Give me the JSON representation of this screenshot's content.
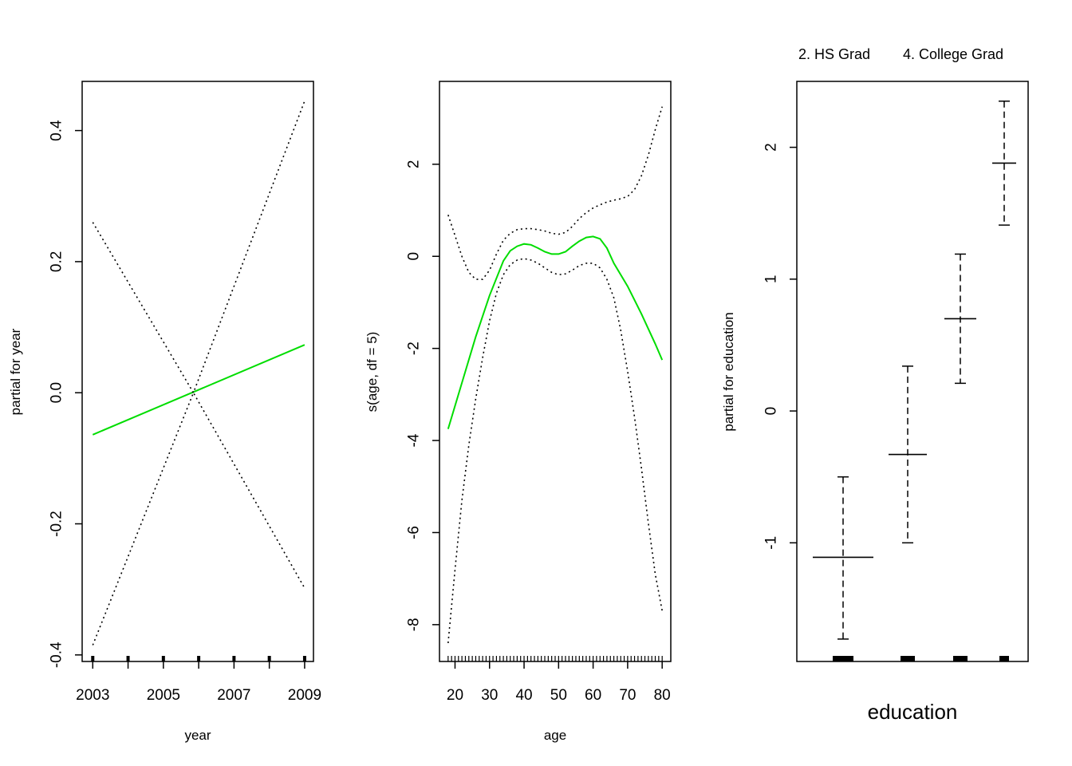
{
  "chart_data": [
    {
      "type": "line",
      "xlabel": "year",
      "ylabel": "partial for year",
      "xlim": [
        2002.7,
        2009.25
      ],
      "ylim": [
        -0.41,
        0.475
      ],
      "x_ticks": [
        2003,
        2005,
        2007,
        2009
      ],
      "x_tick_labels": [
        "2003",
        "2005",
        "2007",
        "2009"
      ],
      "x_minor_ticks": [
        2004,
        2006,
        2008
      ],
      "y_ticks": [
        -0.4,
        -0.2,
        0.0,
        0.2,
        0.4
      ],
      "y_tick_labels": [
        "-0.4",
        "-0.2",
        "0.0",
        "0.2",
        "0.4"
      ],
      "rug": [
        2003,
        2004,
        2005,
        2006,
        2007,
        2008,
        2009
      ],
      "series": [
        {
          "role": "fit",
          "color": "#00dd00",
          "x": [
            2003,
            2009
          ],
          "y": [
            -0.064,
            0.073
          ]
        },
        {
          "role": "upper-band",
          "color": "#000000",
          "x": [
            2003,
            2005.85,
            2009
          ],
          "y": [
            0.26,
            0.0,
            0.445
          ]
        },
        {
          "role": "lower-band",
          "color": "#000000",
          "x": [
            2003,
            2005.85,
            2009
          ],
          "y": [
            -0.385,
            0.0,
            -0.298
          ]
        }
      ]
    },
    {
      "type": "line",
      "xlabel": "age",
      "ylabel": "s(age, df = 5)",
      "xlim": [
        15.5,
        82.5
      ],
      "ylim": [
        -8.8,
        3.8
      ],
      "x_ticks": [
        20,
        30,
        40,
        50,
        60,
        70,
        80
      ],
      "x_tick_labels": [
        "20",
        "30",
        "40",
        "50",
        "60",
        "70",
        "80"
      ],
      "y_ticks": [
        -8,
        -6,
        -4,
        -2,
        0,
        2
      ],
      "y_tick_labels": [
        "-8",
        "-6",
        "-4",
        "-2",
        "0",
        "2"
      ],
      "rug_range": [
        18,
        80
      ],
      "series": [
        {
          "role": "fit",
          "color": "#00dd00",
          "x": [
            18,
            22,
            26,
            30,
            34,
            36,
            38,
            40,
            42,
            44,
            46,
            48,
            50,
            52,
            54,
            56,
            58,
            60,
            62,
            64,
            66,
            70,
            74,
            78,
            80
          ],
          "y": [
            -3.75,
            -2.75,
            -1.75,
            -0.85,
            -0.1,
            0.12,
            0.22,
            0.27,
            0.25,
            0.18,
            0.1,
            0.05,
            0.05,
            0.1,
            0.22,
            0.33,
            0.41,
            0.43,
            0.38,
            0.18,
            -0.15,
            -0.65,
            -1.25,
            -1.9,
            -2.25
          ]
        },
        {
          "role": "upper-band",
          "color": "#000000",
          "x": [
            18,
            20,
            22,
            24,
            26,
            28,
            30,
            32,
            34,
            36,
            38,
            40,
            42,
            44,
            46,
            48,
            50,
            52,
            54,
            56,
            58,
            60,
            62,
            64,
            66,
            68,
            70,
            72,
            74,
            76,
            78,
            80
          ],
          "y": [
            0.9,
            0.45,
            0.0,
            -0.35,
            -0.5,
            -0.5,
            -0.3,
            0.05,
            0.35,
            0.5,
            0.58,
            0.6,
            0.6,
            0.58,
            0.55,
            0.5,
            0.48,
            0.52,
            0.65,
            0.82,
            0.95,
            1.05,
            1.12,
            1.18,
            1.22,
            1.25,
            1.3,
            1.45,
            1.75,
            2.2,
            2.75,
            3.25
          ]
        },
        {
          "role": "lower-band",
          "color": "#000000",
          "x": [
            18,
            20,
            22,
            24,
            26,
            28,
            30,
            32,
            34,
            36,
            38,
            40,
            42,
            44,
            46,
            48,
            50,
            52,
            54,
            56,
            58,
            60,
            62,
            64,
            66,
            68,
            70,
            72,
            74,
            76,
            78,
            80
          ],
          "y": [
            -8.4,
            -6.8,
            -5.3,
            -4.1,
            -3.1,
            -2.2,
            -1.4,
            -0.8,
            -0.4,
            -0.18,
            -0.08,
            -0.05,
            -0.08,
            -0.15,
            -0.25,
            -0.35,
            -0.4,
            -0.38,
            -0.3,
            -0.2,
            -0.15,
            -0.15,
            -0.25,
            -0.5,
            -0.9,
            -1.6,
            -2.5,
            -3.5,
            -4.6,
            -5.8,
            -6.9,
            -7.7
          ]
        }
      ]
    },
    {
      "type": "errorbar",
      "top_labels": [
        "2. HS Grad",
        "4. College Grad"
      ],
      "xlabel": "education",
      "ylabel": "partial for education",
      "ylim": [
        -1.9,
        2.5
      ],
      "y_ticks": [
        -1,
        0,
        1,
        2
      ],
      "y_tick_labels": [
        "-1",
        "0",
        "1",
        "2"
      ],
      "levels": [
        {
          "fit": -1.11,
          "upper": -0.5,
          "lower": -1.73
        },
        {
          "fit": -0.33,
          "upper": 0.34,
          "lower": -1.0
        },
        {
          "fit": 0.7,
          "upper": 1.19,
          "lower": 0.21
        },
        {
          "fit": 1.88,
          "upper": 2.35,
          "lower": 1.41
        }
      ]
    }
  ]
}
